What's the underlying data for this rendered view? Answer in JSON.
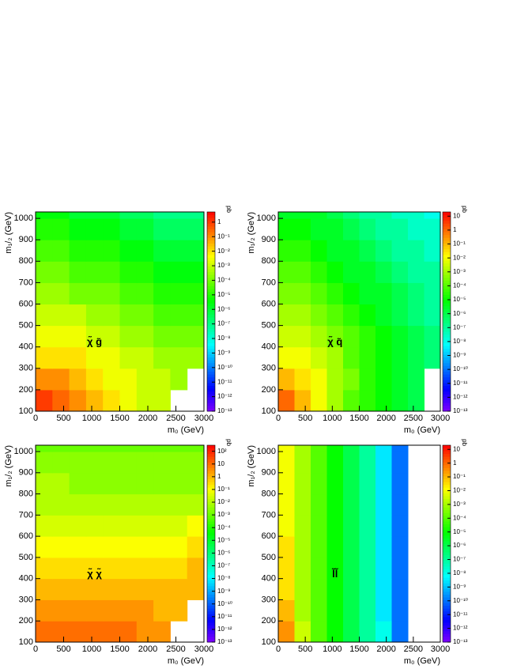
{
  "chart_data": [
    {
      "type": "heatmap",
      "label": "χ̃ g̃",
      "xlabel": "m₀ (GeV)",
      "ylabel": "m₁/₂ (GeV)",
      "zlabel": "pb",
      "xlim": [
        0,
        3000
      ],
      "ylim": [
        100,
        1030
      ],
      "xticks": [
        0,
        500,
        1000,
        1500,
        2000,
        2500,
        3000
      ],
      "yticks": [
        100,
        200,
        300,
        400,
        500,
        600,
        700,
        800,
        900,
        1000
      ],
      "xbins": [
        0,
        300,
        600,
        900,
        1200,
        1500,
        1800,
        2100,
        2400,
        2700,
        3000
      ],
      "ybins": [
        100,
        200,
        300,
        400,
        500,
        600,
        700,
        800,
        900,
        1000,
        1030
      ],
      "zlog": true,
      "zlim": [
        1e-13,
        5
      ],
      "zticks": [
        1,
        {
          "value": 0.1,
          "label": "10⁻¹"
        },
        {
          "value": 0.01,
          "label": "10⁻²"
        },
        {
          "value": 0.001,
          "label": "10⁻³"
        },
        {
          "value": 0.0001,
          "label": "10⁻⁴"
        },
        {
          "value": 1e-05,
          "label": "10⁻⁵"
        },
        {
          "value": 1e-06,
          "label": "10⁻⁶"
        },
        {
          "value": 1e-07,
          "label": "10⁻⁷"
        },
        {
          "value": 1e-08,
          "label": "10⁻⁸"
        },
        {
          "value": 1e-09,
          "label": "10⁻⁹"
        },
        {
          "value": 1e-10,
          "label": "10⁻¹⁰"
        },
        {
          "value": 1e-11,
          "label": "10⁻¹¹"
        },
        {
          "value": 1e-12,
          "label": "10⁻¹²"
        },
        {
          "value": 1e-13,
          "label": "10⁻¹³"
        }
      ],
      "z": [
        [
          1,
          0.3,
          0.1,
          0.03,
          0.01,
          0.003,
          0.001,
          0.001,
          null,
          null
        ],
        [
          0.1,
          0.1,
          0.03,
          0.01,
          0.003,
          0.003,
          0.001,
          0.001,
          0.0003,
          null
        ],
        [
          0.01,
          0.01,
          0.01,
          0.003,
          0.003,
          0.001,
          0.001,
          0.0003,
          0.0003,
          0.0003
        ],
        [
          0.003,
          0.003,
          0.003,
          0.001,
          0.001,
          0.0003,
          0.0003,
          0.0001,
          0.0001,
          0.0001
        ],
        [
          0.001,
          0.001,
          0.001,
          0.0003,
          0.0003,
          0.0001,
          0.0001,
          3e-05,
          3e-05,
          3e-05
        ],
        [
          0.0003,
          0.0003,
          0.0001,
          0.0001,
          0.0001,
          3e-05,
          3e-05,
          1e-05,
          1e-05,
          1e-05
        ],
        [
          0.0001,
          0.0001,
          3e-05,
          3e-05,
          3e-05,
          1e-05,
          1e-05,
          3e-06,
          3e-06,
          3e-06
        ],
        [
          3e-05,
          3e-05,
          1e-05,
          1e-05,
          1e-05,
          3e-06,
          3e-06,
          1e-06,
          1e-06,
          1e-06
        ],
        [
          1e-05,
          1e-05,
          3e-06,
          3e-06,
          3e-06,
          1e-06,
          1e-06,
          3e-07,
          3e-07,
          3e-07
        ],
        [
          3e-06,
          3e-06,
          1e-06,
          1e-06,
          1e-06,
          3e-07,
          3e-07,
          1e-07,
          1e-07,
          1e-07
        ]
      ]
    },
    {
      "type": "heatmap",
      "label": "χ̃ q̃",
      "xlabel": "m₀ (GeV)",
      "ylabel": "m₁/₂ (GeV)",
      "zlabel": "pb",
      "xlim": [
        0,
        3000
      ],
      "ylim": [
        100,
        1030
      ],
      "xticks": [
        0,
        500,
        1000,
        1500,
        2000,
        2500,
        3000
      ],
      "yticks": [
        100,
        200,
        300,
        400,
        500,
        600,
        700,
        800,
        900,
        1000
      ],
      "xbins": [
        0,
        300,
        600,
        900,
        1200,
        1500,
        1800,
        2100,
        2400,
        2700,
        3000
      ],
      "ybins": [
        100,
        200,
        300,
        400,
        500,
        600,
        700,
        800,
        900,
        1000,
        1030
      ],
      "zlog": true,
      "zlim": [
        1e-13,
        20
      ],
      "zticks": [
        10,
        1,
        {
          "value": 0.1,
          "label": "10⁻¹"
        },
        {
          "value": 0.01,
          "label": "10⁻²"
        },
        {
          "value": 0.001,
          "label": "10⁻³"
        },
        {
          "value": 0.0001,
          "label": "10⁻⁴"
        },
        {
          "value": 1e-05,
          "label": "10⁻⁵"
        },
        {
          "value": 1e-06,
          "label": "10⁻⁶"
        },
        {
          "value": 1e-07,
          "label": "10⁻⁷"
        },
        {
          "value": 1e-08,
          "label": "10⁻⁸"
        },
        {
          "value": 1e-09,
          "label": "10⁻⁹"
        },
        {
          "value": 1e-10,
          "label": "10⁻¹⁰"
        },
        {
          "value": 1e-11,
          "label": "10⁻¹¹"
        },
        {
          "value": 1e-12,
          "label": "10⁻¹²"
        },
        {
          "value": 1e-13,
          "label": "10⁻¹³"
        }
      ],
      "z": [
        [
          1,
          0.1,
          0.01,
          0.001,
          0.0001,
          3e-05,
          1e-05,
          3e-06,
          1e-06,
          null
        ],
        [
          0.1,
          0.03,
          0.01,
          0.001,
          0.0003,
          3e-05,
          1e-05,
          3e-06,
          1e-06,
          null
        ],
        [
          0.01,
          0.01,
          0.003,
          0.001,
          0.0001,
          3e-05,
          1e-05,
          3e-06,
          1e-06,
          3e-07
        ],
        [
          0.003,
          0.003,
          0.001,
          0.0003,
          0.0001,
          3e-05,
          1e-05,
          3e-06,
          1e-06,
          3e-07
        ],
        [
          0.001,
          0.001,
          0.0003,
          0.0001,
          3e-05,
          1e-05,
          3e-06,
          1e-06,
          3e-07,
          1e-07
        ],
        [
          0.0003,
          0.0003,
          0.0001,
          3e-05,
          1e-05,
          3e-06,
          3e-06,
          1e-06,
          3e-07,
          1e-07
        ],
        [
          0.0001,
          0.0001,
          3e-05,
          1e-05,
          3e-06,
          3e-06,
          1e-06,
          3e-07,
          1e-07,
          1e-07
        ],
        [
          3e-05,
          3e-05,
          1e-05,
          3e-06,
          3e-06,
          1e-06,
          3e-07,
          1e-07,
          1e-07,
          3e-08
        ],
        [
          1e-05,
          1e-05,
          3e-06,
          3e-06,
          1e-06,
          3e-07,
          1e-07,
          1e-07,
          3e-08,
          3e-08
        ],
        [
          3e-06,
          3e-06,
          3e-06,
          1e-06,
          3e-07,
          1e-07,
          1e-07,
          3e-08,
          3e-08,
          1e-08
        ]
      ]
    },
    {
      "type": "heatmap",
      "label": "χ̃ χ̃",
      "xlabel": "m₀ (GeV)",
      "ylabel": "m₁/₂ (GeV)",
      "zlabel": "pb",
      "xlim": [
        0,
        3000
      ],
      "ylim": [
        100,
        1030
      ],
      "xticks": [
        0,
        500,
        1000,
        1500,
        2000,
        2500,
        3000
      ],
      "yticks": [
        100,
        200,
        300,
        400,
        500,
        600,
        700,
        800,
        900,
        1000
      ],
      "xbins": [
        0,
        300,
        600,
        900,
        1200,
        1500,
        1800,
        2100,
        2400,
        2700,
        3000
      ],
      "ybins": [
        100,
        200,
        300,
        400,
        500,
        600,
        700,
        800,
        900,
        1000,
        1030
      ],
      "zlog": true,
      "zlim": [
        1e-13,
        300
      ],
      "zticks": [
        {
          "value": 100,
          "label": "10²"
        },
        10,
        1,
        {
          "value": 0.1,
          "label": "10⁻¹"
        },
        {
          "value": 0.01,
          "label": "10⁻²"
        },
        {
          "value": 0.001,
          "label": "10⁻³"
        },
        {
          "value": 0.0001,
          "label": "10⁻⁴"
        },
        {
          "value": 1e-05,
          "label": "10⁻⁵"
        },
        {
          "value": 1e-06,
          "label": "10⁻⁶"
        },
        {
          "value": 1e-07,
          "label": "10⁻⁷"
        },
        {
          "value": 1e-08,
          "label": "10⁻⁸"
        },
        {
          "value": 1e-09,
          "label": "10⁻⁹"
        },
        {
          "value": 1e-10,
          "label": "10⁻¹⁰"
        },
        {
          "value": 1e-11,
          "label": "10⁻¹¹"
        },
        {
          "value": 1e-12,
          "label": "10⁻¹²"
        },
        {
          "value": 1e-13,
          "label": "10⁻¹³"
        }
      ],
      "z": [
        [
          10,
          10,
          10,
          10,
          10,
          10,
          3,
          3,
          null,
          null
        ],
        [
          3,
          3,
          3,
          3,
          3,
          3,
          3,
          1,
          1,
          null
        ],
        [
          1,
          1,
          1,
          1,
          1,
          1,
          1,
          1,
          1,
          1
        ],
        [
          0.3,
          0.3,
          0.3,
          0.3,
          0.3,
          0.3,
          0.3,
          0.3,
          0.3,
          1
        ],
        [
          0.1,
          0.1,
          0.1,
          0.1,
          0.1,
          0.1,
          0.1,
          0.1,
          0.1,
          0.3
        ],
        [
          0.03,
          0.03,
          0.03,
          0.03,
          0.03,
          0.03,
          0.03,
          0.03,
          0.03,
          0.1
        ],
        [
          0.01,
          0.01,
          0.01,
          0.01,
          0.01,
          0.01,
          0.01,
          0.01,
          0.01,
          0.01
        ],
        [
          0.01,
          0.01,
          0.003,
          0.003,
          0.003,
          0.003,
          0.003,
          0.003,
          0.003,
          0.003
        ],
        [
          0.003,
          0.003,
          0.003,
          0.003,
          0.003,
          0.003,
          0.003,
          0.003,
          0.003,
          0.003
        ],
        [
          0.001,
          0.001,
          0.001,
          0.001,
          0.001,
          0.001,
          0.001,
          0.001,
          0.001,
          0.001
        ]
      ]
    },
    {
      "type": "heatmap",
      "label": "l̃l̃",
      "xlabel": "m₀ (GeV)",
      "ylabel": "m₁/₂ (GeV)",
      "zlabel": "pb",
      "xlim": [
        0,
        3000
      ],
      "ylim": [
        100,
        1030
      ],
      "xticks": [
        0,
        500,
        1000,
        1500,
        2000,
        2500,
        3000
      ],
      "yticks": [
        100,
        200,
        300,
        400,
        500,
        600,
        700,
        800,
        900,
        1000
      ],
      "xbins": [
        0,
        300,
        600,
        900,
        1200,
        1500,
        1800,
        2100,
        2400,
        2700,
        3000
      ],
      "ybins": [
        100,
        200,
        300,
        400,
        500,
        600,
        700,
        800,
        900,
        1000,
        1030
      ],
      "zlog": true,
      "zlim": [
        1e-13,
        20
      ],
      "zticks": [
        10,
        1,
        {
          "value": 0.1,
          "label": "10⁻¹"
        },
        {
          "value": 0.01,
          "label": "10⁻²"
        },
        {
          "value": 0.001,
          "label": "10⁻³"
        },
        {
          "value": 0.0001,
          "label": "10⁻⁴"
        },
        {
          "value": 1e-05,
          "label": "10⁻⁵"
        },
        {
          "value": 1e-06,
          "label": "10⁻⁶"
        },
        {
          "value": 1e-07,
          "label": "10⁻⁷"
        },
        {
          "value": 1e-08,
          "label": "10⁻⁸"
        },
        {
          "value": 1e-09,
          "label": "10⁻⁹"
        },
        {
          "value": 1e-10,
          "label": "10⁻¹⁰"
        },
        {
          "value": 1e-11,
          "label": "10⁻¹¹"
        },
        {
          "value": 1e-12,
          "label": "10⁻¹²"
        },
        {
          "value": 1e-13,
          "label": "10⁻¹³"
        }
      ],
      "z": [
        [
          0.3,
          0.003,
          0.0001,
          1e-05,
          1e-06,
          1e-07,
          1e-08,
          1e-10,
          null,
          null
        ],
        [
          0.1,
          0.001,
          0.0001,
          1e-05,
          1e-06,
          1e-07,
          3e-09,
          1e-10,
          null,
          null
        ],
        [
          0.03,
          0.001,
          0.0001,
          1e-05,
          1e-06,
          1e-07,
          3e-09,
          1e-10,
          null,
          null
        ],
        [
          0.03,
          0.001,
          0.0001,
          1e-05,
          1e-06,
          1e-07,
          3e-09,
          1e-10,
          null,
          null
        ],
        [
          0.03,
          0.001,
          0.0001,
          1e-05,
          1e-06,
          1e-07,
          3e-09,
          1e-10,
          null,
          null
        ],
        [
          0.01,
          0.001,
          0.0001,
          1e-05,
          1e-06,
          1e-07,
          3e-09,
          1e-10,
          null,
          null
        ],
        [
          0.01,
          0.001,
          0.0001,
          1e-05,
          1e-06,
          1e-07,
          3e-09,
          1e-10,
          null,
          null
        ],
        [
          0.01,
          0.001,
          0.0001,
          1e-05,
          1e-06,
          1e-07,
          3e-09,
          1e-10,
          null,
          null
        ],
        [
          0.01,
          0.001,
          0.0001,
          1e-05,
          1e-06,
          1e-07,
          3e-09,
          1e-10,
          null,
          null
        ],
        [
          0.01,
          0.001,
          0.0001,
          1e-05,
          1e-06,
          1e-07,
          3e-09,
          1e-10,
          null,
          null
        ]
      ]
    }
  ]
}
